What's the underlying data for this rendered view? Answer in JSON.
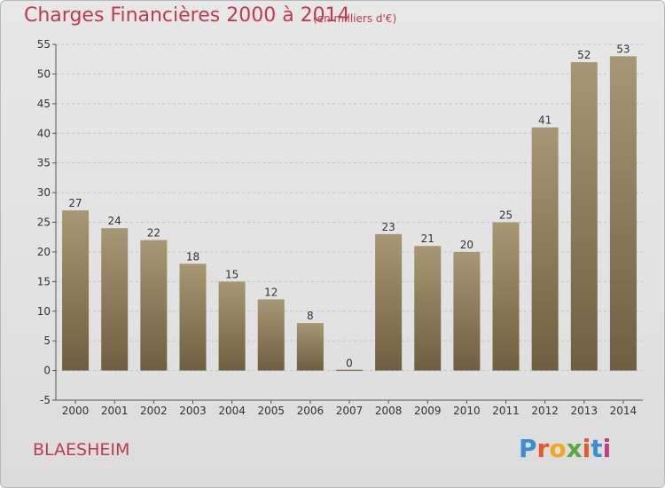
{
  "header": {
    "title": "Charges Financières 2000 à 2014",
    "subtitle": "(en milliers d'€)"
  },
  "footer": {
    "city": "BLAESHEIM",
    "brand": "Proxiti"
  },
  "colors": {
    "title": "#c03a52",
    "bar_top": "#a89774",
    "bar_bottom": "#6f5f40"
  },
  "chart_data": {
    "type": "bar",
    "title": "Charges Financières 2000 à 2014",
    "subtitle": "(en milliers d'€)",
    "categories": [
      "2000",
      "2001",
      "2002",
      "2003",
      "2004",
      "2005",
      "2006",
      "2007",
      "2008",
      "2009",
      "2010",
      "2011",
      "2012",
      "2013",
      "2014"
    ],
    "values": [
      27,
      24,
      22,
      18,
      15,
      12,
      8,
      0,
      23,
      21,
      20,
      25,
      41,
      52,
      53
    ],
    "ylim": [
      -5,
      55
    ],
    "yticks": [
      -5,
      0,
      5,
      10,
      15,
      20,
      25,
      30,
      35,
      40,
      45,
      50,
      55
    ],
    "grid": true,
    "legend": "none",
    "xlabel": "",
    "ylabel": ""
  }
}
